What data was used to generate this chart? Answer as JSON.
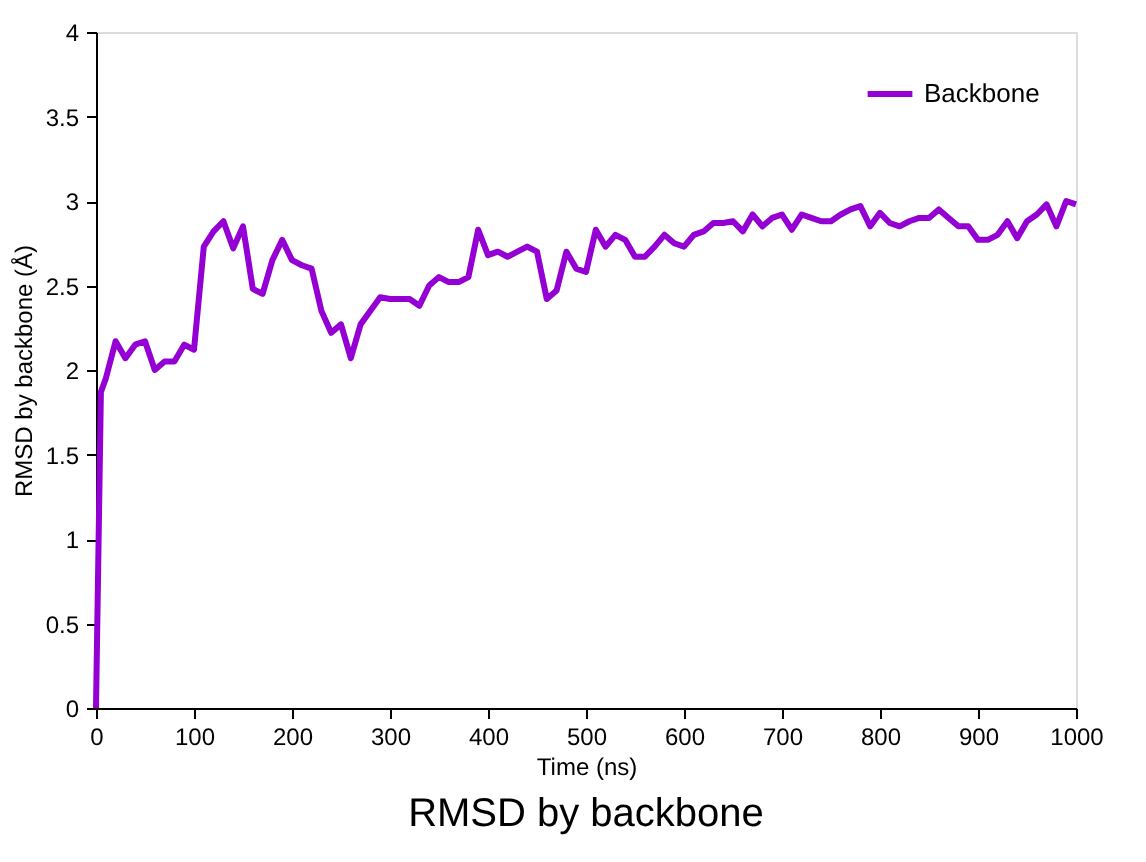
{
  "chart_data": {
    "type": "line",
    "title": "RMSD by backbone",
    "xlabel": "Time (ns)",
    "ylabel": "RMSD by backbone  (Å)",
    "x": [
      0,
      5,
      10,
      20,
      30,
      40,
      50,
      60,
      70,
      80,
      90,
      100,
      110,
      120,
      130,
      140,
      150,
      160,
      170,
      180,
      190,
      200,
      210,
      220,
      230,
      240,
      250,
      260,
      270,
      280,
      290,
      300,
      310,
      320,
      330,
      340,
      350,
      360,
      370,
      380,
      390,
      400,
      410,
      420,
      430,
      440,
      450,
      460,
      470,
      480,
      490,
      500,
      510,
      520,
      530,
      540,
      550,
      560,
      570,
      580,
      590,
      600,
      610,
      620,
      630,
      640,
      650,
      660,
      670,
      680,
      690,
      700,
      710,
      720,
      730,
      740,
      750,
      760,
      770,
      780,
      790,
      800,
      810,
      820,
      830,
      840,
      850,
      860,
      870,
      880,
      890,
      900,
      910,
      920,
      930,
      940,
      950,
      960,
      970,
      980,
      990,
      1000
    ],
    "series": [
      {
        "name": "Backbone",
        "color": "#9400d3",
        "values": [
          0,
          1.87,
          1.95,
          2.17,
          2.07,
          2.15,
          2.17,
          2.0,
          2.05,
          2.05,
          2.15,
          2.12,
          2.73,
          2.82,
          2.88,
          2.72,
          2.85,
          2.48,
          2.45,
          2.65,
          2.77,
          2.65,
          2.62,
          2.6,
          2.35,
          2.22,
          2.27,
          2.07,
          2.27,
          2.35,
          2.43,
          2.42,
          2.42,
          2.42,
          2.38,
          2.5,
          2.55,
          2.52,
          2.52,
          2.55,
          2.83,
          2.68,
          2.7,
          2.67,
          2.7,
          2.73,
          2.7,
          2.42,
          2.47,
          2.7,
          2.6,
          2.58,
          2.83,
          2.73,
          2.8,
          2.77,
          2.67,
          2.67,
          2.73,
          2.8,
          2.75,
          2.73,
          2.8,
          2.82,
          2.87,
          2.87,
          2.88,
          2.82,
          2.92,
          2.85,
          2.9,
          2.92,
          2.83,
          2.92,
          2.9,
          2.88,
          2.88,
          2.92,
          2.95,
          2.97,
          2.85,
          2.93,
          2.87,
          2.85,
          2.88,
          2.9,
          2.9,
          2.95,
          2.9,
          2.85,
          2.85,
          2.77,
          2.77,
          2.8,
          2.88,
          2.78,
          2.88,
          2.92,
          2.98,
          2.85,
          3.0,
          2.98
        ]
      }
    ],
    "xlim": [
      0,
      1000
    ],
    "xticks": [
      0,
      100,
      200,
      300,
      400,
      500,
      600,
      700,
      800,
      900,
      1000
    ],
    "ylim": [
      0,
      4
    ],
    "yticks": [
      0,
      0.5,
      1,
      1.5,
      2,
      2.5,
      3,
      3.5,
      4
    ],
    "grid": false,
    "legend": "top right",
    "marker": "none",
    "line_style": "solid"
  }
}
